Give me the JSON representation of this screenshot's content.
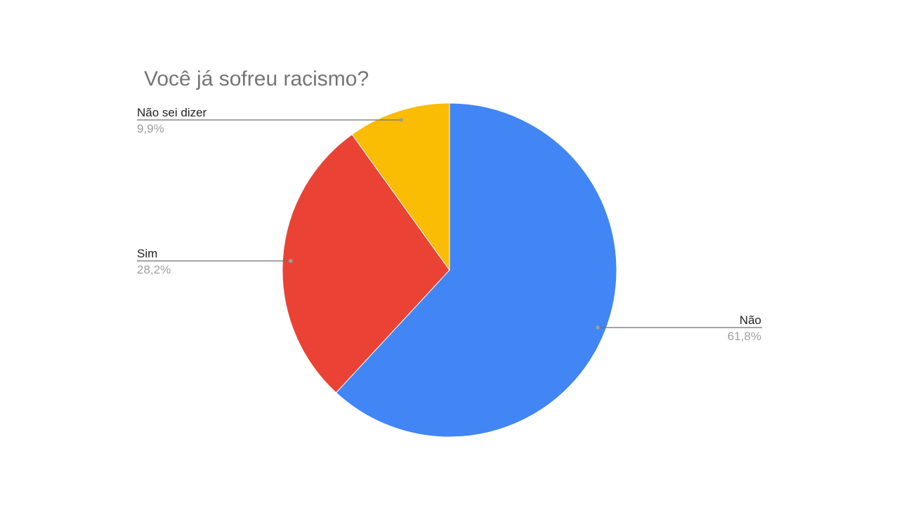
{
  "chart_data": {
    "type": "pie",
    "title": "Você já sofreu racismo?",
    "legend": "labels beside slices",
    "slices": [
      {
        "label": "Não",
        "value": 61.8,
        "value_label": "61,8%",
        "color": "#4285f4"
      },
      {
        "label": "Sim",
        "value": 28.2,
        "value_label": "28,2%",
        "color": "#ea4335"
      },
      {
        "label": "Não sei dizer",
        "value": 9.9,
        "value_label": "9,9%",
        "color": "#fbbc04"
      }
    ]
  }
}
